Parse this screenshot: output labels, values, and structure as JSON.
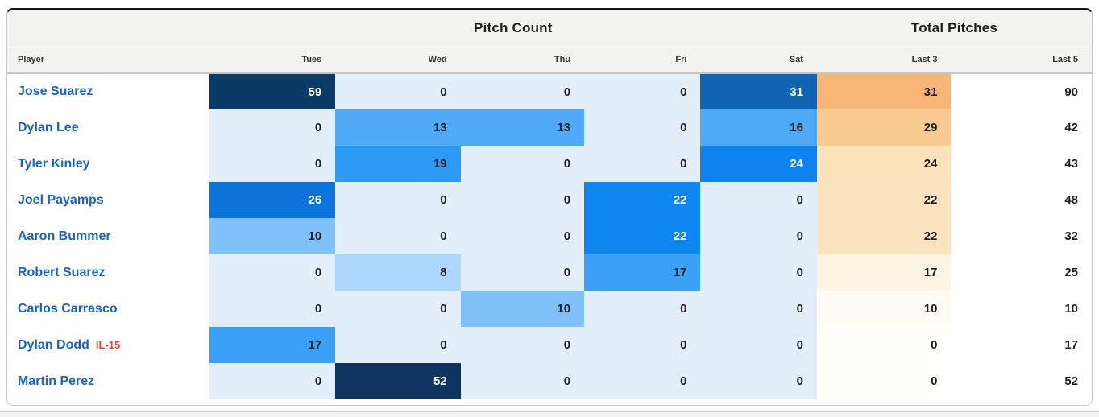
{
  "table": {
    "group_headers": {
      "pitch_count": "Pitch Count",
      "total_pitches": "Total Pitches"
    },
    "columns": [
      "Player",
      "Tues",
      "Wed",
      "Thu",
      "Fri",
      "Sat",
      "Last 3",
      "Last 5"
    ],
    "rows": [
      {
        "player": "Jose Suarez",
        "badge": "",
        "pitches": [
          {
            "v": "59",
            "bg": "#0c3a66",
            "fg": "#ffffff"
          },
          {
            "v": "0",
            "bg": "#e3eefb"
          },
          {
            "v": "0",
            "bg": "#e3eefb"
          },
          {
            "v": "0",
            "bg": "#e3eefb"
          },
          {
            "v": "31",
            "bg": "#1164b4",
            "fg": "#ffffff"
          }
        ],
        "last3": {
          "v": "31",
          "bg": "#f7b678"
        },
        "last5": "90"
      },
      {
        "player": "Dylan Lee",
        "badge": "",
        "pitches": [
          {
            "v": "0",
            "bg": "#e3eefb"
          },
          {
            "v": "13",
            "bg": "#51aaf7"
          },
          {
            "v": "13",
            "bg": "#51aaf7"
          },
          {
            "v": "0",
            "bg": "#e3eefb"
          },
          {
            "v": "16",
            "bg": "#4da9f6"
          }
        ],
        "last3": {
          "v": "29",
          "bg": "#f9cb92"
        },
        "last5": "42"
      },
      {
        "player": "Tyler Kinley",
        "badge": "",
        "pitches": [
          {
            "v": "0",
            "bg": "#e3eefb"
          },
          {
            "v": "19",
            "bg": "#2d9bf5"
          },
          {
            "v": "0",
            "bg": "#e3eefb"
          },
          {
            "v": "0",
            "bg": "#e3eefb"
          },
          {
            "v": "24",
            "bg": "#0d83ef",
            "fg": "#ffffff"
          }
        ],
        "last3": {
          "v": "24",
          "bg": "#fbe2ba"
        },
        "last5": "43"
      },
      {
        "player": "Joel Payamps",
        "badge": "",
        "pitches": [
          {
            "v": "26",
            "bg": "#0b73d9",
            "fg": "#ffffff"
          },
          {
            "v": "0",
            "bg": "#e3eefb"
          },
          {
            "v": "0",
            "bg": "#e3eefb"
          },
          {
            "v": "22",
            "bg": "#0e86f2",
            "fg": "#ffffff"
          },
          {
            "v": "0",
            "bg": "#e3eefb"
          }
        ],
        "last3": {
          "v": "22",
          "bg": "#fbe3bd"
        },
        "last5": "48"
      },
      {
        "player": "Aaron Bummer",
        "badge": "",
        "pitches": [
          {
            "v": "10",
            "bg": "#7fc1f8"
          },
          {
            "v": "0",
            "bg": "#e3eefb"
          },
          {
            "v": "0",
            "bg": "#e3eefb"
          },
          {
            "v": "22",
            "bg": "#0e86f2",
            "fg": "#ffffff"
          },
          {
            "v": "0",
            "bg": "#e3eefb"
          }
        ],
        "last3": {
          "v": "22",
          "bg": "#fbe3bd"
        },
        "last5": "32"
      },
      {
        "player": "Robert Suarez",
        "badge": "",
        "pitches": [
          {
            "v": "0",
            "bg": "#e3eefb"
          },
          {
            "v": "8",
            "bg": "#aad7fa"
          },
          {
            "v": "0",
            "bg": "#e3eefb"
          },
          {
            "v": "17",
            "bg": "#3aa1f6"
          },
          {
            "v": "0",
            "bg": "#e3eefb"
          }
        ],
        "last3": {
          "v": "17",
          "bg": "#fdf4e4"
        },
        "last5": "25"
      },
      {
        "player": "Carlos Carrasco",
        "badge": "",
        "pitches": [
          {
            "v": "0",
            "bg": "#e3eefb"
          },
          {
            "v": "0",
            "bg": "#e3eefb"
          },
          {
            "v": "10",
            "bg": "#7fc1f8"
          },
          {
            "v": "0",
            "bg": "#e3eefb"
          },
          {
            "v": "0",
            "bg": "#e3eefb"
          }
        ],
        "last3": {
          "v": "10",
          "bg": "#fffcf6"
        },
        "last5": "10"
      },
      {
        "player": "Dylan Dodd",
        "badge": "IL-15",
        "pitches": [
          {
            "v": "17",
            "bg": "#3aa1f6"
          },
          {
            "v": "0",
            "bg": "#e3eefb"
          },
          {
            "v": "0",
            "bg": "#e3eefb"
          },
          {
            "v": "0",
            "bg": "#e3eefb"
          },
          {
            "v": "0",
            "bg": "#e3eefb"
          }
        ],
        "last3": {
          "v": "0",
          "bg": "#fffefb"
        },
        "last5": "17"
      },
      {
        "player": "Martin Perez",
        "badge": "",
        "pitches": [
          {
            "v": "0",
            "bg": "#e3eefb"
          },
          {
            "v": "52",
            "bg": "#0d3560",
            "fg": "#ffffff"
          },
          {
            "v": "0",
            "bg": "#e3eefb"
          },
          {
            "v": "0",
            "bg": "#e3eefb"
          },
          {
            "v": "0",
            "bg": "#e3eefb"
          }
        ],
        "last3": {
          "v": "0",
          "bg": "#fffefb"
        },
        "last5": "52"
      }
    ]
  },
  "colors": {
    "accent_blue_max": "#0c3a66",
    "accent_orange_max": "#f7b678",
    "zero_cell_blue": "#e3eefb",
    "player_link": "#1a63c5",
    "badge_red": "#e8402f",
    "header_bg": "#f2f2f1"
  }
}
